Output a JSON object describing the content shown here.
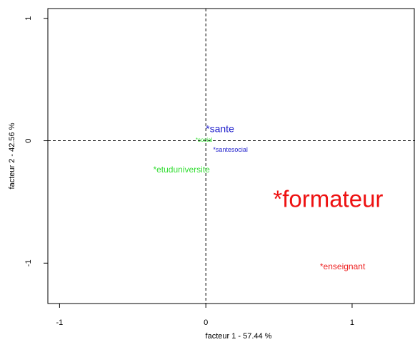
{
  "chart_data": {
    "type": "scatter",
    "xlabel": "facteur  1  - 57.44 %",
    "ylabel": "facteur  2  - 42.56 %",
    "xlim": [
      -1.08,
      1.43
    ],
    "ylim": [
      -1.33,
      1.08
    ],
    "x_ticks": [
      -1,
      0,
      1
    ],
    "x_tick_labels": [
      "-1",
      "0",
      "1"
    ],
    "y_ticks": [
      -1,
      0,
      1
    ],
    "y_tick_labels": [
      "-1",
      "0",
      "1"
    ],
    "reference_lines": {
      "x": 0,
      "y": 0,
      "style": "dashed"
    },
    "points": [
      {
        "label": "*sante",
        "x": 0.0,
        "y": 0.07,
        "color": "#2222cc",
        "size": 14
      },
      {
        "label": "*social",
        "x": -0.07,
        "y": -0.01,
        "color": "#33dd33",
        "size": 8
      },
      {
        "label": "*santesocial",
        "x": 0.05,
        "y": -0.09,
        "color": "#2222cc",
        "size": 9
      },
      {
        "label": "*etuduniversite",
        "x": -0.36,
        "y": -0.26,
        "color": "#33dd33",
        "size": 12
      },
      {
        "label": "*formateur",
        "x": 0.46,
        "y": -0.54,
        "color": "#ee1111",
        "size": 33
      },
      {
        "label": "*enseignant",
        "x": 0.78,
        "y": -1.05,
        "color": "#ee2222",
        "size": 12
      }
    ]
  }
}
